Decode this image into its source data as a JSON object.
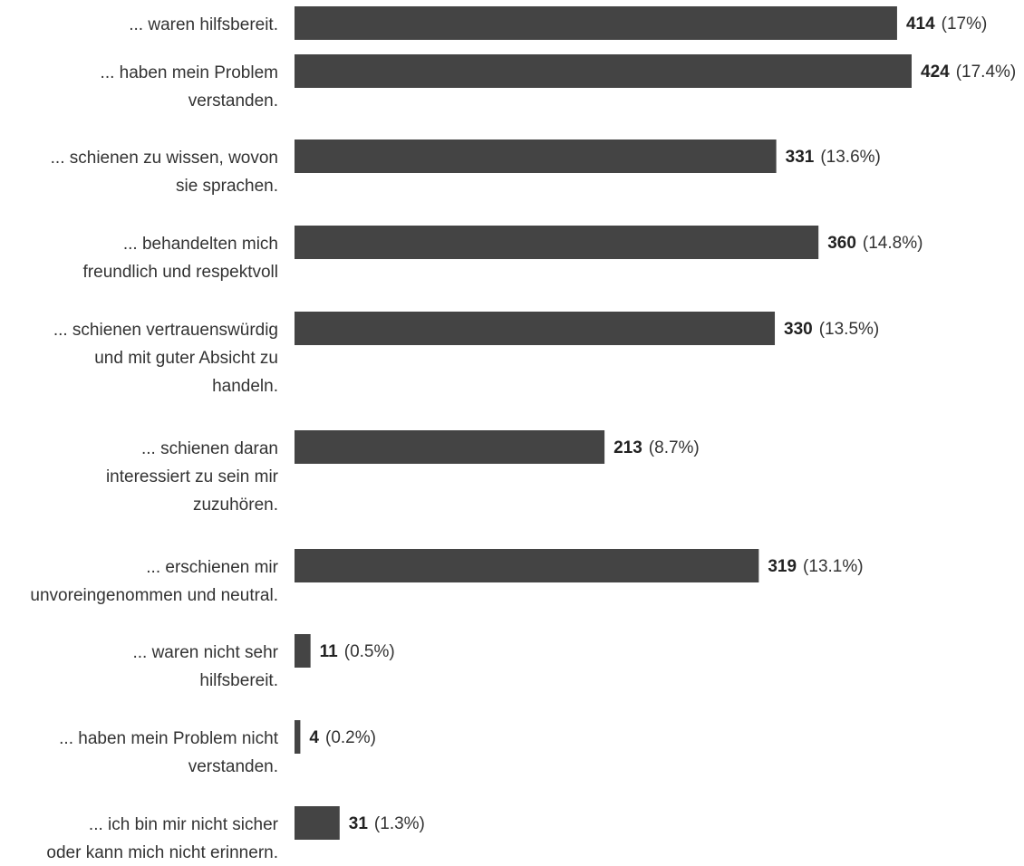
{
  "chart_data": {
    "type": "bar",
    "orientation": "horizontal",
    "bar_color": "#444444",
    "title": "",
    "xlabel": "",
    "ylabel": "",
    "categories": [
      [
        "... waren hilfsbereit."
      ],
      [
        "... haben mein Problem",
        "verstanden."
      ],
      [
        "... schienen zu wissen, wovon",
        "sie sprachen."
      ],
      [
        "... behandelten mich",
        "freundlich und respektvoll"
      ],
      [
        "... schienen vertrauenswürdig",
        "und mit guter Absicht zu",
        "handeln."
      ],
      [
        "... schienen daran",
        "interessiert zu sein mir",
        "zuzuhören."
      ],
      [
        "... erschienen mir",
        "unvoreingenommen und neutral."
      ],
      [
        "... waren nicht sehr",
        "hilfsbereit."
      ],
      [
        "... haben mein Problem nicht",
        "verstanden."
      ],
      [
        "... ich bin mir nicht sicher",
        "oder kann mich nicht erinnern."
      ]
    ],
    "values": [
      414,
      424,
      331,
      360,
      330,
      213,
      319,
      11,
      4,
      31
    ],
    "percent_labels": [
      "(17%)",
      "(17.4%)",
      "(13.6%)",
      "(14.8%)",
      "(13.5%)",
      "(8.7%)",
      "(13.1%)",
      "(0.5%)",
      "(0.2%)",
      "(1.3%)"
    ],
    "xlim": [
      0,
      424
    ],
    "grid": false,
    "legend": "none"
  }
}
